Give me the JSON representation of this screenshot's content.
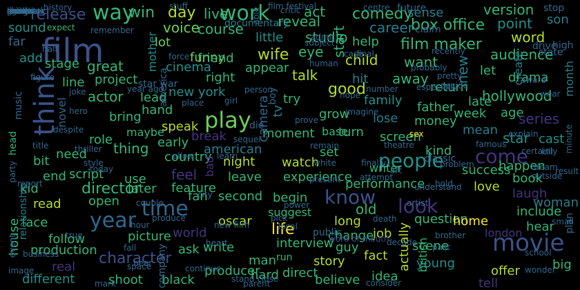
{
  "background": "#000000",
  "palette": {
    "navy": "#46337e",
    "indigo": "#3b528b",
    "blue": "#31688e",
    "teal": "#277f8e",
    "sea": "#21918c",
    "green": "#35b779",
    "lime": "#6ece58",
    "yellow": "#b5de2b",
    "bright": "#fde725",
    "dim": "#3e4989"
  },
  "words": [
    {
      "text": "film",
      "color": "indigo"
    },
    {
      "text": "movie",
      "color": "indigo"
    },
    {
      "text": "work",
      "color": "green"
    },
    {
      "text": "time",
      "color": "blue"
    },
    {
      "text": "play",
      "color": "lime"
    },
    {
      "text": "year",
      "color": "blue"
    },
    {
      "text": "people",
      "color": "sea"
    },
    {
      "text": "look",
      "color": "navy"
    },
    {
      "text": "think",
      "color": "indigo"
    },
    {
      "text": "come",
      "color": "navy"
    },
    {
      "text": "know",
      "color": "indigo"
    },
    {
      "text": "director",
      "color": "green"
    },
    {
      "text": "character",
      "color": "indigo"
    },
    {
      "text": "life",
      "color": "bright"
    },
    {
      "text": "way",
      "color": "green"
    },
    {
      "text": "good",
      "color": "yellow"
    },
    {
      "text": "release",
      "color": "indigo"
    },
    {
      "text": "day",
      "color": "yellow"
    },
    {
      "text": "win",
      "color": "green"
    },
    {
      "text": "live",
      "color": "green"
    },
    {
      "text": "act",
      "color": "green"
    },
    {
      "text": "comedy",
      "color": "green"
    },
    {
      "text": "version",
      "color": "green"
    },
    {
      "text": "sense",
      "color": "teal"
    },
    {
      "text": "box office",
      "color": "green"
    },
    {
      "text": "career",
      "color": "teal"
    },
    {
      "text": "point",
      "color": "sea"
    },
    {
      "text": "son",
      "color": "teal"
    },
    {
      "text": "word",
      "color": "yellow"
    },
    {
      "text": "audience",
      "color": "green"
    },
    {
      "text": "film maker",
      "color": "green"
    },
    {
      "text": "help",
      "color": "green"
    },
    {
      "text": "studio",
      "color": "green"
    },
    {
      "text": "reveal",
      "color": "green"
    },
    {
      "text": "course",
      "color": "green"
    },
    {
      "text": "voice",
      "color": "lime"
    },
    {
      "text": "lot",
      "color": "lime"
    },
    {
      "text": "funny",
      "color": "lime"
    },
    {
      "text": "little",
      "color": "sea"
    },
    {
      "text": "wife",
      "color": "yellow"
    },
    {
      "text": "eye",
      "color": "green"
    },
    {
      "text": "start",
      "color": "green"
    },
    {
      "text": "documentary",
      "color": "teal"
    },
    {
      "text": "sound",
      "color": "sea"
    },
    {
      "text": "far",
      "color": "blue"
    },
    {
      "text": "add",
      "color": "sea"
    },
    {
      "text": "stage",
      "color": "green"
    },
    {
      "text": "great",
      "color": "green"
    },
    {
      "text": "mother",
      "color": "sea"
    },
    {
      "text": "cinema",
      "color": "sea"
    },
    {
      "text": "friend",
      "color": "green"
    },
    {
      "text": "appear",
      "color": "green"
    },
    {
      "text": "talk",
      "color": "yellow"
    },
    {
      "text": "child",
      "color": "yellow"
    },
    {
      "text": "want",
      "color": "green"
    },
    {
      "text": "new",
      "color": "teal"
    },
    {
      "text": "let",
      "color": "green"
    },
    {
      "text": "create",
      "color": "teal"
    },
    {
      "text": "month",
      "color": "teal"
    },
    {
      "text": "drama",
      "color": "green"
    },
    {
      "text": "hollywood",
      "color": "green"
    },
    {
      "text": "project",
      "color": "green"
    },
    {
      "text": "line",
      "color": "green"
    },
    {
      "text": "right",
      "color": "green"
    },
    {
      "text": "new york",
      "color": "sea"
    },
    {
      "text": "hit",
      "color": "teal"
    },
    {
      "text": "away",
      "color": "green"
    },
    {
      "text": "return",
      "color": "green"
    },
    {
      "text": "late",
      "color": "green"
    },
    {
      "text": "actor",
      "color": "green"
    },
    {
      "text": "lead",
      "color": "green"
    },
    {
      "text": "hand",
      "color": "green"
    },
    {
      "text": "bring",
      "color": "green"
    },
    {
      "text": "try",
      "color": "green"
    },
    {
      "text": "family",
      "color": "sea"
    },
    {
      "text": "father",
      "color": "green"
    },
    {
      "text": "week",
      "color": "green"
    },
    {
      "text": "age",
      "color": "green"
    },
    {
      "text": "series",
      "color": "navy"
    },
    {
      "text": "tv",
      "color": "teal"
    },
    {
      "text": "grow",
      "color": "green"
    },
    {
      "text": "lose",
      "color": "teal"
    },
    {
      "text": "money",
      "color": "green"
    },
    {
      "text": "mean",
      "color": "teal"
    },
    {
      "text": "star",
      "color": "sea"
    },
    {
      "text": "cast",
      "color": "sea"
    },
    {
      "text": "role",
      "color": "green"
    },
    {
      "text": "maybe",
      "color": "green"
    },
    {
      "text": "thing",
      "color": "green"
    },
    {
      "text": "speak",
      "color": "yellow"
    },
    {
      "text": "early",
      "color": "green"
    },
    {
      "text": "moment",
      "color": "green"
    },
    {
      "text": "base",
      "color": "green"
    },
    {
      "text": "turn",
      "color": "green"
    },
    {
      "text": "screen",
      "color": "green"
    },
    {
      "text": "kind",
      "color": "green"
    },
    {
      "text": "happen",
      "color": "green"
    },
    {
      "text": "break",
      "color": "navy"
    },
    {
      "text": "american",
      "color": "teal"
    },
    {
      "text": "night",
      "color": "yellow"
    },
    {
      "text": "set",
      "color": "green"
    },
    {
      "text": "writer",
      "color": "green"
    },
    {
      "text": "success",
      "color": "green"
    },
    {
      "text": "bit",
      "color": "green"
    },
    {
      "text": "need",
      "color": "green"
    },
    {
      "text": "script",
      "color": "green"
    },
    {
      "text": "country",
      "color": "green"
    },
    {
      "text": "use",
      "color": "green"
    },
    {
      "text": "feel",
      "color": "navy"
    },
    {
      "text": "watch",
      "color": "yellow"
    },
    {
      "text": "experience",
      "color": "green"
    },
    {
      "text": "book",
      "color": "green"
    },
    {
      "text": "end",
      "color": "green"
    },
    {
      "text": "kid",
      "color": "green"
    },
    {
      "text": "later",
      "color": "green"
    },
    {
      "text": "bad",
      "color": "navy"
    },
    {
      "text": "leave",
      "color": "green"
    },
    {
      "text": "performance",
      "color": "green"
    },
    {
      "text": "love",
      "color": "yellow"
    },
    {
      "text": "laugh",
      "color": "navy"
    },
    {
      "text": "read",
      "color": "yellow"
    },
    {
      "text": "feature",
      "color": "green"
    },
    {
      "text": "fan",
      "color": "green"
    },
    {
      "text": "second",
      "color": "green"
    },
    {
      "text": "begin",
      "color": "green"
    },
    {
      "text": "question",
      "color": "green"
    },
    {
      "text": "include",
      "color": "green"
    },
    {
      "text": "open",
      "color": "green"
    },
    {
      "text": "face",
      "color": "green"
    },
    {
      "text": "suggest",
      "color": "green"
    },
    {
      "text": "old",
      "color": "green"
    },
    {
      "text": "oscar",
      "color": "yellow"
    },
    {
      "text": "long",
      "color": "yellow"
    },
    {
      "text": "home",
      "color": "bright"
    },
    {
      "text": "follow",
      "color": "green"
    },
    {
      "text": "picture",
      "color": "green"
    },
    {
      "text": "world",
      "color": "navy"
    },
    {
      "text": "interview",
      "color": "green"
    },
    {
      "text": "change",
      "color": "green"
    },
    {
      "text": "job",
      "color": "yellow"
    },
    {
      "text": "london",
      "color": "navy"
    },
    {
      "text": "hear",
      "color": "green"
    },
    {
      "text": "production",
      "color": "green"
    },
    {
      "text": "ask",
      "color": "green"
    },
    {
      "text": "write",
      "color": "green"
    },
    {
      "text": "guy",
      "color": "green"
    },
    {
      "text": "scene",
      "color": "green"
    },
    {
      "text": "real",
      "color": "navy"
    },
    {
      "text": "man",
      "color": "green"
    },
    {
      "text": "story",
      "color": "yellow"
    },
    {
      "text": "fact",
      "color": "yellow"
    },
    {
      "text": "young",
      "color": "sea"
    },
    {
      "text": "tell",
      "color": "navy"
    },
    {
      "text": "different",
      "color": "sea"
    },
    {
      "text": "shoot",
      "color": "green"
    },
    {
      "text": "black",
      "color": "green"
    },
    {
      "text": "hard",
      "color": "green"
    },
    {
      "text": "direct",
      "color": "green"
    },
    {
      "text": "believe",
      "color": "green"
    },
    {
      "text": "idea",
      "color": "green"
    },
    {
      "text": "offer",
      "color": "yellow"
    },
    {
      "text": "producer",
      "color": "green"
    },
    {
      "text": "run",
      "color": "green"
    },
    {
      "text": "house",
      "color": "green"
    },
    {
      "text": "actually",
      "color": "yellow"
    },
    {
      "text": "british",
      "color": "green"
    },
    {
      "text": "woman",
      "color": "teal"
    },
    {
      "text": "big",
      "color": "green"
    },
    {
      "text": "head",
      "color": "green"
    },
    {
      "text": "relationship",
      "color": "teal"
    },
    {
      "text": "expect",
      "color": "green"
    },
    {
      "text": "remember",
      "color": "blue"
    },
    {
      "text": "history",
      "color": "blue"
    },
    {
      "text": "stuff",
      "color": "blue"
    },
    {
      "text": "film festival",
      "color": "blue"
    },
    {
      "text": "critic",
      "color": "blue"
    },
    {
      "text": "centre",
      "color": "blue"
    },
    {
      "text": "future",
      "color": "blue"
    },
    {
      "text": "stop",
      "color": "blue"
    },
    {
      "text": "claim",
      "color": "blue"
    },
    {
      "text": "state",
      "color": "blue"
    },
    {
      "text": "drive",
      "color": "blue"
    },
    {
      "text": "high",
      "color": "blue"
    },
    {
      "text": "force",
      "color": "blue"
    },
    {
      "text": "america",
      "color": "blue"
    },
    {
      "text": "figure",
      "color": "blue"
    },
    {
      "text": "music",
      "color": "blue"
    },
    {
      "text": "star war",
      "color": "blue"
    },
    {
      "text": "boy",
      "color": "blue"
    },
    {
      "text": "novel",
      "color": "blue"
    },
    {
      "text": "camera",
      "color": "blue"
    },
    {
      "text": "person",
      "color": "blue"
    },
    {
      "text": "place",
      "color": "blue"
    },
    {
      "text": "girl",
      "color": "blue"
    },
    {
      "text": "die",
      "color": "blue"
    },
    {
      "text": "prove",
      "color": "blue"
    },
    {
      "text": "remain",
      "color": "blue"
    },
    {
      "text": "theatre",
      "color": "blue"
    },
    {
      "text": "sex",
      "color": "bright"
    },
    {
      "text": "classic",
      "color": "blue"
    },
    {
      "text": "famous",
      "color": "blue"
    },
    {
      "text": "despite",
      "color": "blue"
    },
    {
      "text": "hero",
      "color": "blue"
    },
    {
      "text": "title",
      "color": "blue"
    },
    {
      "text": "style",
      "color": "blue"
    },
    {
      "text": "today",
      "color": "blue"
    },
    {
      "text": "allow",
      "color": "blue"
    },
    {
      "text": "city",
      "color": "blue"
    },
    {
      "text": "finally",
      "color": "blue"
    },
    {
      "text": "white",
      "color": "blue"
    },
    {
      "text": "art",
      "color": "blue"
    },
    {
      "text": "problem",
      "color": "blue"
    },
    {
      "text": "dream",
      "color": "blue"
    },
    {
      "text": "result",
      "color": "blue"
    },
    {
      "text": "understand",
      "color": "blue"
    },
    {
      "text": "artist",
      "color": "blue"
    },
    {
      "text": "attempt",
      "color": "blue"
    },
    {
      "text": "death",
      "color": "blue"
    },
    {
      "text": "brother",
      "color": "blue"
    },
    {
      "text": "past",
      "color": "blue"
    },
    {
      "text": "school",
      "color": "blue"
    },
    {
      "text": "wonder",
      "color": "blue"
    },
    {
      "text": "pick",
      "color": "blue"
    },
    {
      "text": "stand close",
      "color": "blue"
    },
    {
      "text": "company",
      "color": "blue"
    },
    {
      "text": "continue",
      "color": "blue"
    },
    {
      "text": "space",
      "color": "blue"
    },
    {
      "text": "parent",
      "color": "blue"
    },
    {
      "text": "consider",
      "color": "blue"
    },
    {
      "text": "public",
      "color": "blue"
    },
    {
      "text": "human",
      "color": "blue"
    },
    {
      "text": "probably",
      "color": "blue"
    },
    {
      "text": "pretty",
      "color": "blue"
    },
    {
      "text": "decide",
      "color": "blue"
    },
    {
      "text": "award",
      "color": "blue"
    },
    {
      "text": "explain",
      "color": "blue"
    },
    {
      "text": "kill",
      "color": "blue"
    },
    {
      "text": "certainly",
      "color": "blue"
    },
    {
      "text": "wear",
      "color": "blue"
    },
    {
      "text": "hope",
      "color": "blue"
    },
    {
      "text": "number",
      "color": "blue"
    },
    {
      "text": "case",
      "color": "blue"
    },
    {
      "text": "subject",
      "color": "blue"
    },
    {
      "text": "final",
      "color": "blue"
    },
    {
      "text": "hour",
      "color": "blue"
    },
    {
      "text": "fall",
      "color": "blue"
    },
    {
      "text": "heart",
      "color": "blue"
    },
    {
      "text": "produce",
      "color": "blue"
    },
    {
      "text": "bear",
      "color": "blue"
    },
    {
      "text": "image",
      "color": "blue"
    },
    {
      "text": "business",
      "color": "blue"
    },
    {
      "text": "power",
      "color": "blue"
    },
    {
      "text": "local",
      "color": "blue"
    },
    {
      "text": "decade",
      "color": "blue"
    },
    {
      "text": "especially",
      "color": "blue"
    },
    {
      "text": "minute",
      "color": "blue"
    },
    {
      "text": "small",
      "color": "blue"
    },
    {
      "text": "plan",
      "color": "blue"
    },
    {
      "text": "mark",
      "color": "blue"
    },
    {
      "text": "couple",
      "color": "blue"
    },
    {
      "text": "event",
      "color": "blue"
    },
    {
      "text": "party",
      "color": "blue"
    },
    {
      "text": "report",
      "color": "blue"
    },
    {
      "text": "joke",
      "color": "blue"
    },
    {
      "text": "half",
      "color": "blue"
    },
    {
      "text": "admit",
      "color": "blue"
    },
    {
      "text": "present",
      "color": "blue"
    },
    {
      "text": "recently",
      "color": "blue"
    },
    {
      "text": "hold",
      "color": "blue"
    },
    {
      "text": "word of mouth",
      "color": "dim"
    },
    {
      "text": "new film",
      "color": "blue"
    },
    {
      "text": "true",
      "color": "blue"
    },
    {
      "text": "outside",
      "color": "blue"
    },
    {
      "text": "learn",
      "color": "blue"
    },
    {
      "text": "sequel",
      "color": "blue"
    },
    {
      "text": "year ago",
      "color": "blue"
    },
    {
      "text": "imagine",
      "color": "blue"
    },
    {
      "text": "thriller",
      "color": "blue"
    },
    {
      "text": "able",
      "color": "blue"
    },
    {
      "text": "record",
      "color": "blue"
    },
    {
      "text": "issue",
      "color": "blue"
    },
    {
      "text": "personal",
      "color": "blue"
    },
    {
      "text": "arrive",
      "color": "blue"
    },
    {
      "text": "deal",
      "color": "blue"
    },
    {
      "text": "cut",
      "color": "blue"
    },
    {
      "text": "sort",
      "color": "blue"
    },
    {
      "text": "mind",
      "color": "blue"
    },
    {
      "text": "daughter",
      "color": "blue"
    },
    {
      "text": "involve",
      "color": "blue"
    },
    {
      "text": "level",
      "color": "blue"
    },
    {
      "text": "reason",
      "color": "blue"
    },
    {
      "text": "clear",
      "color": "blue"
    },
    {
      "text": "group",
      "color": "blue"
    },
    {
      "text": "light",
      "color": "blue"
    },
    {
      "text": "cinematic",
      "color": "blue"
    }
  ]
}
